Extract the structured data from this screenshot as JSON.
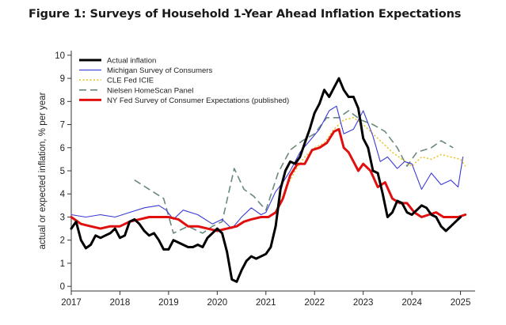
{
  "figure_title": "Figure 1: Surveys of Household 1-Year Ahead Inflation Expectations",
  "chart_data": {
    "type": "line",
    "title": "Figure 1: Surveys of Household 1-Year Ahead Inflation Expectations",
    "xlabel": "",
    "ylabel": "actual or expected inflation, % per year",
    "xlim": [
      2017,
      2025.3
    ],
    "ylim": [
      -0.2,
      10.2
    ],
    "x_ticks": [
      2017,
      2018,
      2019,
      2020,
      2021,
      2022,
      2023,
      2024,
      2025
    ],
    "x_tick_labels": [
      "2017",
      "2018",
      "2019",
      "2020",
      "2021",
      "2022",
      "2023",
      "2024",
      "2025"
    ],
    "y_ticks": [
      0,
      1,
      2,
      3,
      4,
      5,
      6,
      7,
      8,
      9,
      10
    ],
    "y_tick_labels": [
      "0",
      "1",
      "2",
      "3",
      "4",
      "5",
      "6",
      "7",
      "8",
      "9",
      "10"
    ],
    "grid": false,
    "legend_position": "top-left",
    "series": [
      {
        "name": "Actual inflation",
        "color": "#000000",
        "style": "solid-thick",
        "x": [
          2017.0,
          2017.1,
          2017.2,
          2017.3,
          2017.4,
          2017.5,
          2017.6,
          2017.7,
          2017.8,
          2017.9,
          2018.0,
          2018.1,
          2018.2,
          2018.3,
          2018.4,
          2018.5,
          2018.6,
          2018.7,
          2018.8,
          2018.9,
          2019.0,
          2019.1,
          2019.2,
          2019.3,
          2019.4,
          2019.5,
          2019.6,
          2019.7,
          2019.8,
          2019.9,
          2020.0,
          2020.1,
          2020.2,
          2020.3,
          2020.4,
          2020.5,
          2020.6,
          2020.7,
          2020.8,
          2020.9,
          2021.0,
          2021.1,
          2021.2,
          2021.3,
          2021.4,
          2021.5,
          2021.6,
          2021.7,
          2021.8,
          2021.9,
          2022.0,
          2022.1,
          2022.2,
          2022.3,
          2022.4,
          2022.5,
          2022.6,
          2022.7,
          2022.8,
          2022.9,
          2023.0,
          2023.1,
          2023.2,
          2023.3,
          2023.4,
          2023.5,
          2023.6,
          2023.7,
          2023.8,
          2023.9,
          2024.0,
          2024.1,
          2024.2,
          2024.3,
          2024.4,
          2024.5,
          2024.6,
          2024.7,
          2024.8,
          2024.9,
          2025.0
        ],
        "y": [
          2.5,
          2.8,
          2.0,
          1.65,
          1.8,
          2.2,
          2.1,
          2.2,
          2.3,
          2.5,
          2.1,
          2.2,
          2.8,
          2.9,
          2.7,
          2.4,
          2.2,
          2.3,
          2.0,
          1.6,
          1.6,
          2.0,
          1.9,
          1.8,
          1.7,
          1.7,
          1.8,
          1.7,
          2.1,
          2.3,
          2.5,
          2.3,
          1.5,
          0.3,
          0.2,
          0.7,
          1.1,
          1.3,
          1.2,
          1.3,
          1.4,
          1.7,
          2.6,
          4.2,
          5.0,
          5.4,
          5.3,
          5.6,
          6.2,
          6.8,
          7.5,
          7.9,
          8.5,
          8.2,
          8.6,
          9.0,
          8.5,
          8.2,
          8.2,
          7.7,
          6.4,
          6.0,
          5.0,
          4.9,
          4.0,
          3.0,
          3.2,
          3.7,
          3.6,
          3.2,
          3.1,
          3.3,
          3.5,
          3.4,
          3.1,
          3.0,
          2.6,
          2.4,
          2.6,
          2.8,
          3.0
        ]
      },
      {
        "name": "Michigan Survey of Consumers",
        "color": "#3b3bd6",
        "style": "solid-thin",
        "x": [
          2017.0,
          2017.3,
          2017.6,
          2017.9,
          2018.2,
          2018.5,
          2018.8,
          2018.95,
          2019.1,
          2019.3,
          2019.6,
          2019.9,
          2020.1,
          2020.3,
          2020.5,
          2020.7,
          2020.9,
          2021.0,
          2021.2,
          2021.35,
          2021.5,
          2021.7,
          2021.9,
          2022.1,
          2022.3,
          2022.45,
          2022.6,
          2022.8,
          2023.0,
          2023.2,
          2023.35,
          2023.5,
          2023.7,
          2023.85,
          2024.0,
          2024.2,
          2024.4,
          2024.6,
          2024.8,
          2024.95,
          2025.05
        ],
        "y": [
          3.1,
          3.0,
          3.1,
          3.0,
          3.2,
          3.4,
          3.5,
          3.3,
          2.9,
          3.3,
          3.1,
          2.7,
          2.9,
          2.5,
          3.0,
          3.4,
          3.1,
          3.2,
          4.1,
          4.5,
          5.0,
          5.8,
          6.3,
          6.8,
          7.6,
          7.8,
          6.6,
          6.8,
          7.6,
          6.5,
          5.4,
          5.6,
          5.1,
          5.4,
          5.3,
          4.2,
          4.9,
          4.4,
          4.6,
          4.3,
          5.6
        ]
      },
      {
        "name": "CLE Fed ICIE",
        "color": "#e8c428",
        "style": "dotted",
        "x": [
          2021.25,
          2021.4,
          2021.6,
          2021.8,
          2022.0,
          2022.2,
          2022.4,
          2022.6,
          2022.8,
          2023.0,
          2023.2,
          2023.4,
          2023.6,
          2023.8,
          2024.0,
          2024.2,
          2024.4,
          2024.6,
          2024.8,
          2025.0,
          2025.1
        ],
        "y": [
          3.4,
          4.2,
          5.0,
          5.6,
          6.0,
          6.2,
          6.8,
          7.2,
          7.3,
          7.0,
          6.6,
          6.2,
          5.8,
          5.5,
          5.2,
          5.6,
          5.5,
          5.7,
          5.6,
          5.5,
          5.2
        ]
      },
      {
        "name": "Nielsen HomeScan Panel",
        "color": "#6a8a7a",
        "style": "dashed",
        "x": [
          2018.3,
          2018.6,
          2018.9,
          2019.1,
          2019.4,
          2019.7,
          2019.9,
          2020.1,
          2020.35,
          2020.55,
          2020.75,
          2021.0,
          2021.25,
          2021.5,
          2021.75,
          2022.0,
          2022.25,
          2022.5,
          2022.7,
          2022.95,
          2023.2,
          2023.45,
          2023.7,
          2023.9,
          2024.1,
          2024.4,
          2024.6,
          2024.85
        ],
        "y": [
          4.6,
          4.2,
          3.8,
          2.3,
          2.6,
          2.3,
          2.6,
          2.8,
          5.1,
          4.2,
          3.9,
          3.3,
          4.9,
          5.9,
          6.3,
          6.6,
          7.3,
          7.3,
          7.6,
          7.2,
          7.0,
          6.7,
          6.0,
          5.2,
          5.8,
          6.0,
          6.3,
          6.0
        ]
      },
      {
        "name": "NY Fed Survey of Consumer Expectations (published)",
        "color": "#e01010",
        "style": "solid-thick",
        "x": [
          2017.0,
          2017.2,
          2017.4,
          2017.6,
          2017.8,
          2018.0,
          2018.2,
          2018.4,
          2018.6,
          2018.8,
          2019.0,
          2019.2,
          2019.4,
          2019.6,
          2019.8,
          2020.0,
          2020.2,
          2020.4,
          2020.55,
          2020.7,
          2020.9,
          2021.05,
          2021.2,
          2021.35,
          2021.5,
          2021.65,
          2021.8,
          2021.95,
          2022.1,
          2022.25,
          2022.4,
          2022.5,
          2022.6,
          2022.7,
          2022.8,
          2022.9,
          2023.0,
          2023.15,
          2023.3,
          2023.45,
          2023.6,
          2023.75,
          2023.9,
          2024.05,
          2024.2,
          2024.35,
          2024.5,
          2024.65,
          2024.8,
          2024.95,
          2025.1
        ],
        "y": [
          3.0,
          2.7,
          2.6,
          2.5,
          2.6,
          2.6,
          2.8,
          2.9,
          3.0,
          3.0,
          3.0,
          2.9,
          2.6,
          2.6,
          2.5,
          2.4,
          2.5,
          2.6,
          2.8,
          2.9,
          3.0,
          3.0,
          3.2,
          3.8,
          4.8,
          5.3,
          5.3,
          5.9,
          6.0,
          6.2,
          6.7,
          6.8,
          6.0,
          5.8,
          5.4,
          5.0,
          5.3,
          5.0,
          4.3,
          4.5,
          3.8,
          3.6,
          3.6,
          3.2,
          3.0,
          3.1,
          3.2,
          3.0,
          3.0,
          3.0,
          3.1
        ]
      }
    ]
  }
}
